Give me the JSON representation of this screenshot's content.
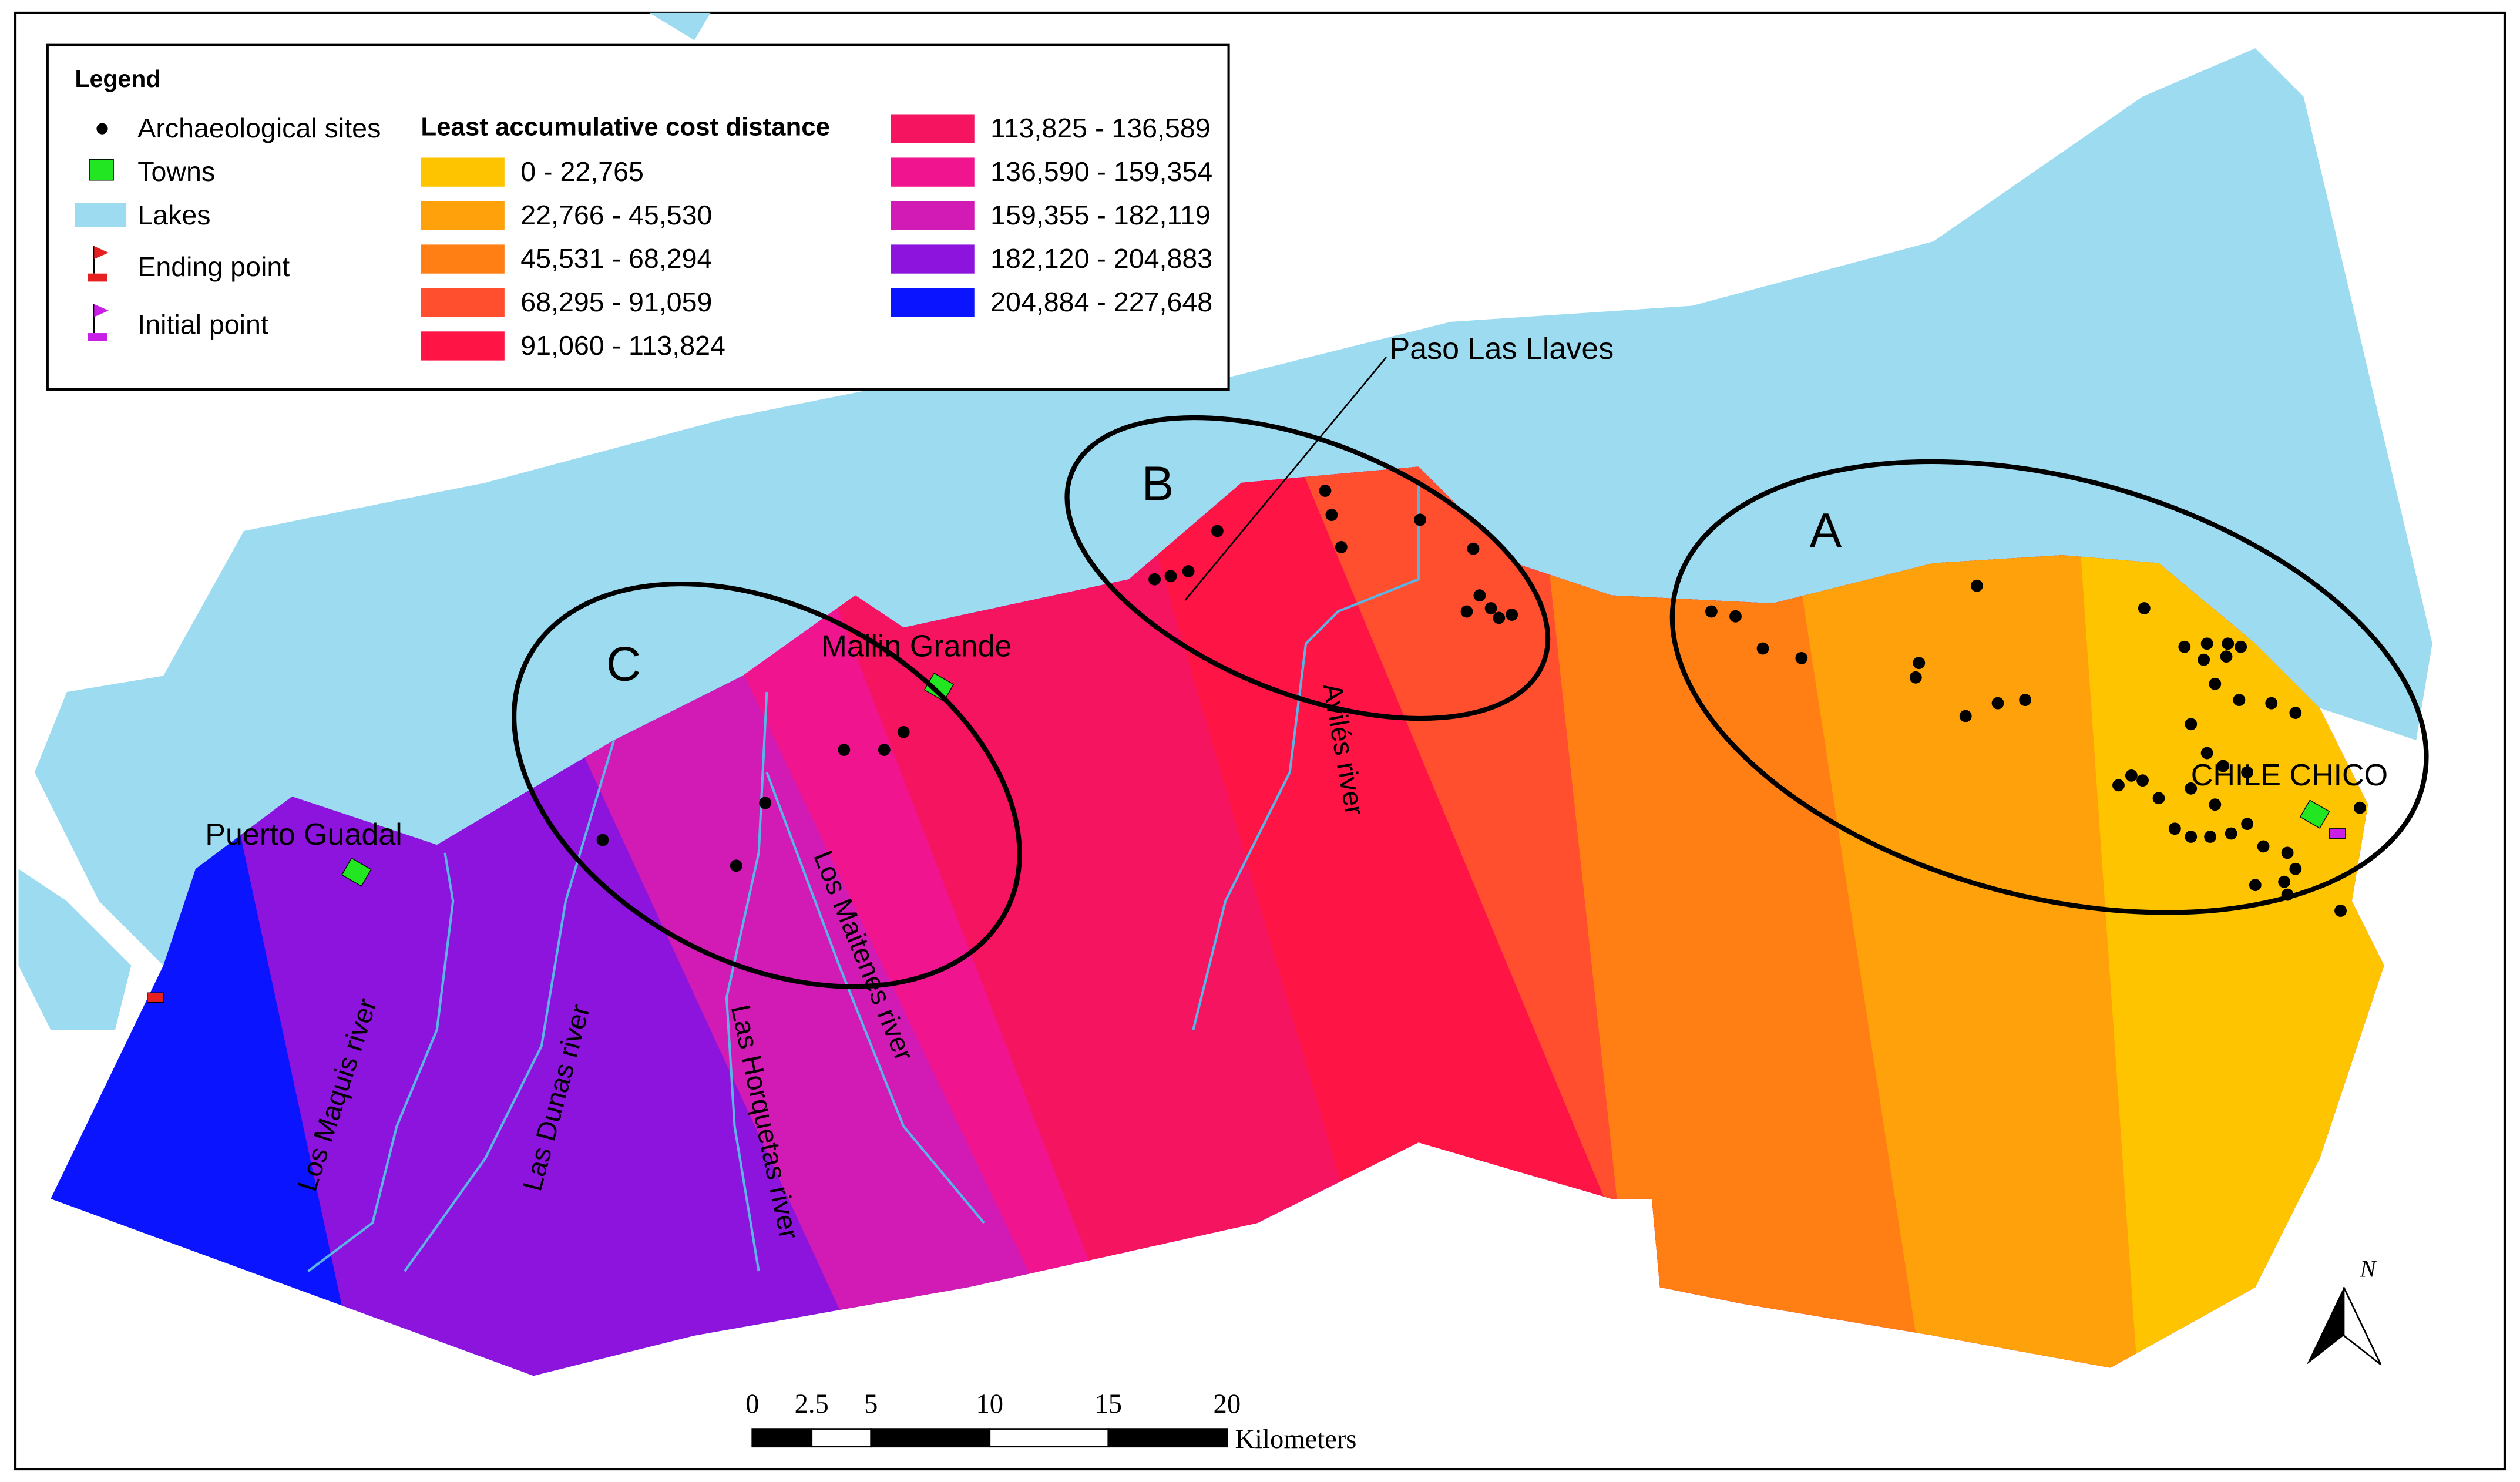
{
  "legend": {
    "title": "Legend",
    "symbols": [
      "Archaeological sites",
      "Towns",
      "Lakes",
      "Ending point",
      "Initial point"
    ],
    "cost_title": "Least accumulative cost distance",
    "classes": [
      {
        "label": "0 - 22,765",
        "color": "#ffc400"
      },
      {
        "label": "22,766 - 45,530",
        "color": "#ffa10a"
      },
      {
        "label": "45,531 - 68,294",
        "color": "#ff7f14"
      },
      {
        "label": "68,295 - 91,059",
        "color": "#ff4f2e"
      },
      {
        "label": "91,060 - 113,824",
        "color": "#ff1446"
      },
      {
        "label": "113,825 - 136,589",
        "color": "#f5145f"
      },
      {
        "label": "136,590 - 159,354",
        "color": "#f0148f"
      },
      {
        "label": "159,355 - 182,119",
        "color": "#d21ab4"
      },
      {
        "label": "182,120 - 204,883",
        "color": "#8c14dc"
      },
      {
        "label": "204,884 - 227,648",
        "color": "#0a14ff"
      }
    ]
  },
  "areas": [
    "A",
    "B",
    "C"
  ],
  "places": [
    "Paso Las Llaves",
    "Mallin Grande",
    "Puerto Guadal",
    "CHILE CHICO"
  ],
  "rivers": [
    "Los Maquis river",
    "Las Dunas river",
    "Las Horquetas river",
    "Los Maitenes river",
    "Avilés river"
  ],
  "scale": {
    "ticks": [
      0,
      2.5,
      5,
      10,
      15,
      20
    ],
    "unit": "Kilometers"
  },
  "north": "N"
}
